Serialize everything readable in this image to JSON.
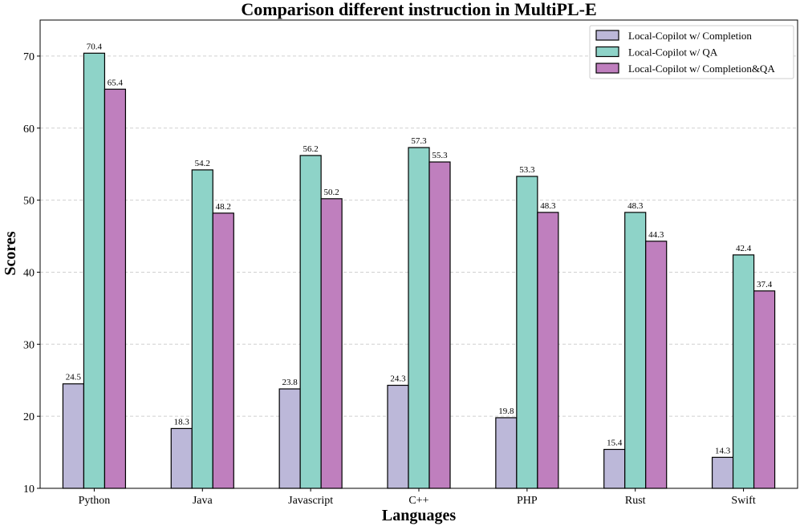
{
  "chart_data": {
    "type": "bar",
    "title": "Comparison different instruction in MultiPL-E",
    "xlabel": "Languages",
    "ylabel": "Scores",
    "ylim": [
      10,
      75
    ],
    "yticks": [
      10,
      20,
      30,
      40,
      50,
      60,
      70
    ],
    "grid": "y-dashed",
    "legend_position": "top-right",
    "categories": [
      "Python",
      "Java",
      "Javascript",
      "C++",
      "PHP",
      "Rust",
      "Swift"
    ],
    "series": [
      {
        "name": "Local-Copilot w/ Completion",
        "color": "#bcb8d9",
        "values": [
          24.5,
          18.3,
          23.8,
          24.3,
          19.8,
          15.4,
          14.3
        ]
      },
      {
        "name": "Local-Copilot w/ QA",
        "color": "#8ed3c8",
        "values": [
          70.4,
          54.2,
          56.2,
          57.3,
          53.3,
          48.3,
          42.4
        ]
      },
      {
        "name": "Local-Copilot w/ Completion&QA",
        "color": "#bf7fbe",
        "values": [
          65.4,
          48.2,
          50.2,
          55.3,
          48.3,
          44.3,
          37.4
        ]
      }
    ]
  }
}
